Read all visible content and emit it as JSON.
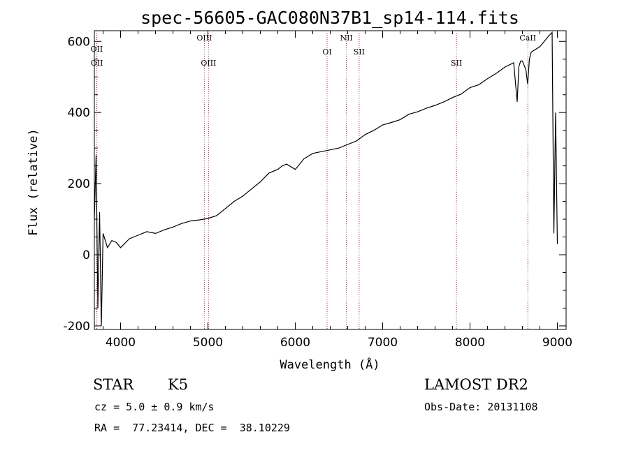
{
  "chart_data": {
    "type": "line",
    "title": "spec-56605-GAC080N37B1_sp14-114.fits",
    "xlabel": "Wavelength (Å)",
    "ylabel": "Flux (relative)",
    "xlim": [
      3700,
      9100
    ],
    "ylim": [
      -210,
      630
    ],
    "x_ticks": [
      4000,
      5000,
      6000,
      7000,
      8000,
      9000
    ],
    "y_ticks": [
      -200,
      0,
      200,
      400,
      600
    ],
    "grid": false,
    "series": [
      {
        "x": [
          3700,
          3720,
          3740,
          3760,
          3780,
          3800,
          3850,
          3900,
          3950,
          4000,
          4100,
          4200,
          4300,
          4400,
          4500,
          4600,
          4700,
          4800,
          4900,
          5000,
          5100,
          5200,
          5300,
          5400,
          5500,
          5600,
          5700,
          5800,
          5850,
          5900,
          6000,
          6100,
          6200,
          6300,
          6400,
          6500,
          6600,
          6700,
          6800,
          6900,
          7000,
          7100,
          7200,
          7300,
          7400,
          7500,
          7600,
          7700,
          7800,
          7900,
          8000,
          8100,
          8200,
          8300,
          8400,
          8500,
          8540,
          8560,
          8580,
          8600,
          8640,
          8660,
          8680,
          8700,
          8800,
          8850,
          8900,
          8940,
          8960,
          8980,
          9000
        ],
        "y": [
          100,
          280,
          -150,
          120,
          -200,
          60,
          20,
          40,
          35,
          20,
          45,
          55,
          65,
          60,
          70,
          78,
          88,
          95,
          98,
          102,
          110,
          130,
          150,
          165,
          185,
          205,
          230,
          240,
          250,
          255,
          240,
          270,
          285,
          290,
          295,
          300,
          310,
          320,
          338,
          350,
          365,
          372,
          380,
          395,
          402,
          412,
          420,
          430,
          442,
          452,
          470,
          478,
          495,
          510,
          528,
          540,
          430,
          530,
          545,
          545,
          520,
          480,
          550,
          570,
          585,
          600,
          615,
          625,
          60,
          400,
          30
        ]
      }
    ],
    "emission_lines": [
      {
        "label": "OII",
        "x": 3727
      },
      {
        "label": "OII",
        "x": 3729
      },
      {
        "label": "OIII",
        "x": 4959
      },
      {
        "label": "OIII",
        "x": 5007
      },
      {
        "label": "OI",
        "x": 6364
      },
      {
        "label": "NII",
        "x": 6585
      },
      {
        "label": "SII",
        "x": 6731
      },
      {
        "label": "SII",
        "x": 7845
      },
      {
        "label": "CaII",
        "x": 8662
      }
    ]
  },
  "info": {
    "object_class": "STAR",
    "subclass": "K5",
    "survey": "LAMOST DR2",
    "velocity": "cz = 5.0 ± 0.9 km/s",
    "obs_date": "Obs-Date: 20131108",
    "coords": "RA =  77.23414, DEC =  38.10229"
  }
}
